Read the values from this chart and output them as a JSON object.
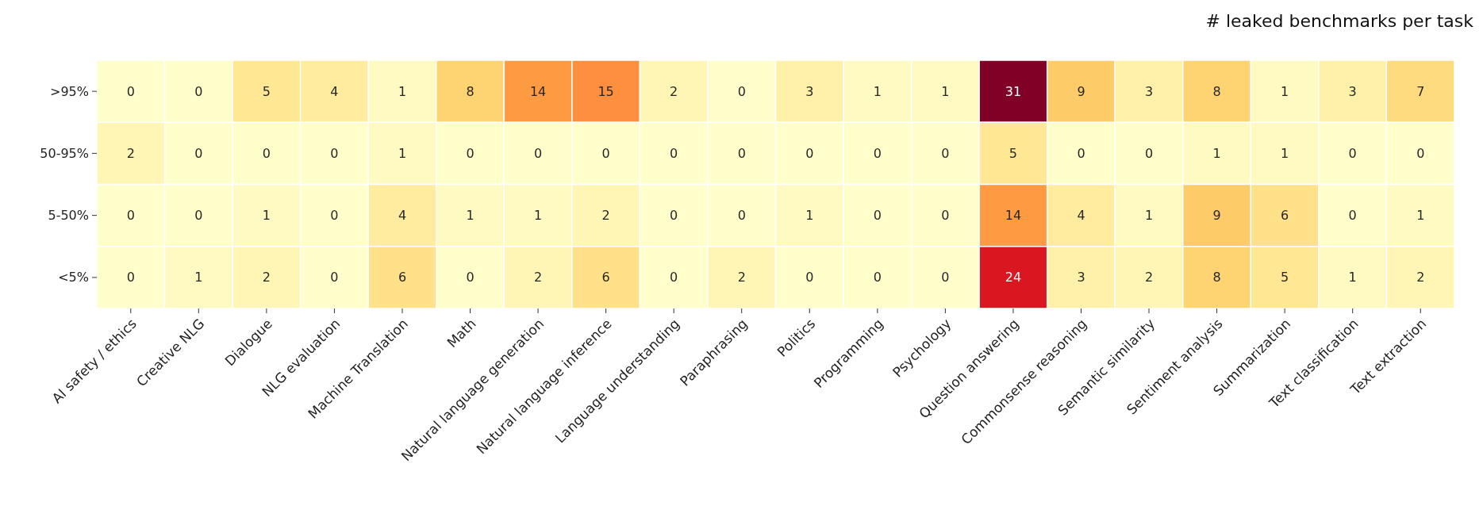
{
  "chart_data": {
    "type": "heatmap",
    "title": "# leaked benchmarks per task",
    "categories": [
      "AI safety / ethics",
      "Creative NLG",
      "Dialogue",
      "NLG evaluation",
      "Machine Translation",
      "Math",
      "Natural language generation",
      "Natural language inference",
      "Language understanding",
      "Paraphrasing",
      "Politics",
      "Programming",
      "Psychology",
      "Question answering",
      "Commonsense reasoning",
      "Semantic similarity",
      "Sentiment analysis",
      "Summarization",
      "Text classification",
      "Text extraction"
    ],
    "data_labels": true,
    "y_categories": [
      ">95%",
      "50-95%",
      "5-50%",
      "<5%"
    ],
    "cells": [
      [
        0,
        0,
        5,
        4,
        1,
        8,
        14,
        15,
        2,
        0,
        3,
        1,
        1,
        31,
        9,
        3,
        8,
        1,
        3,
        7
      ],
      [
        2,
        0,
        0,
        0,
        1,
        0,
        0,
        0,
        0,
        0,
        0,
        0,
        0,
        5,
        0,
        0,
        1,
        1,
        0,
        0
      ],
      [
        0,
        0,
        1,
        0,
        4,
        1,
        1,
        2,
        0,
        0,
        1,
        0,
        0,
        14,
        4,
        1,
        9,
        6,
        0,
        1
      ],
      [
        0,
        1,
        2,
        0,
        6,
        0,
        2,
        6,
        0,
        2,
        0,
        0,
        0,
        24,
        3,
        2,
        8,
        5,
        1,
        2
      ]
    ]
  }
}
